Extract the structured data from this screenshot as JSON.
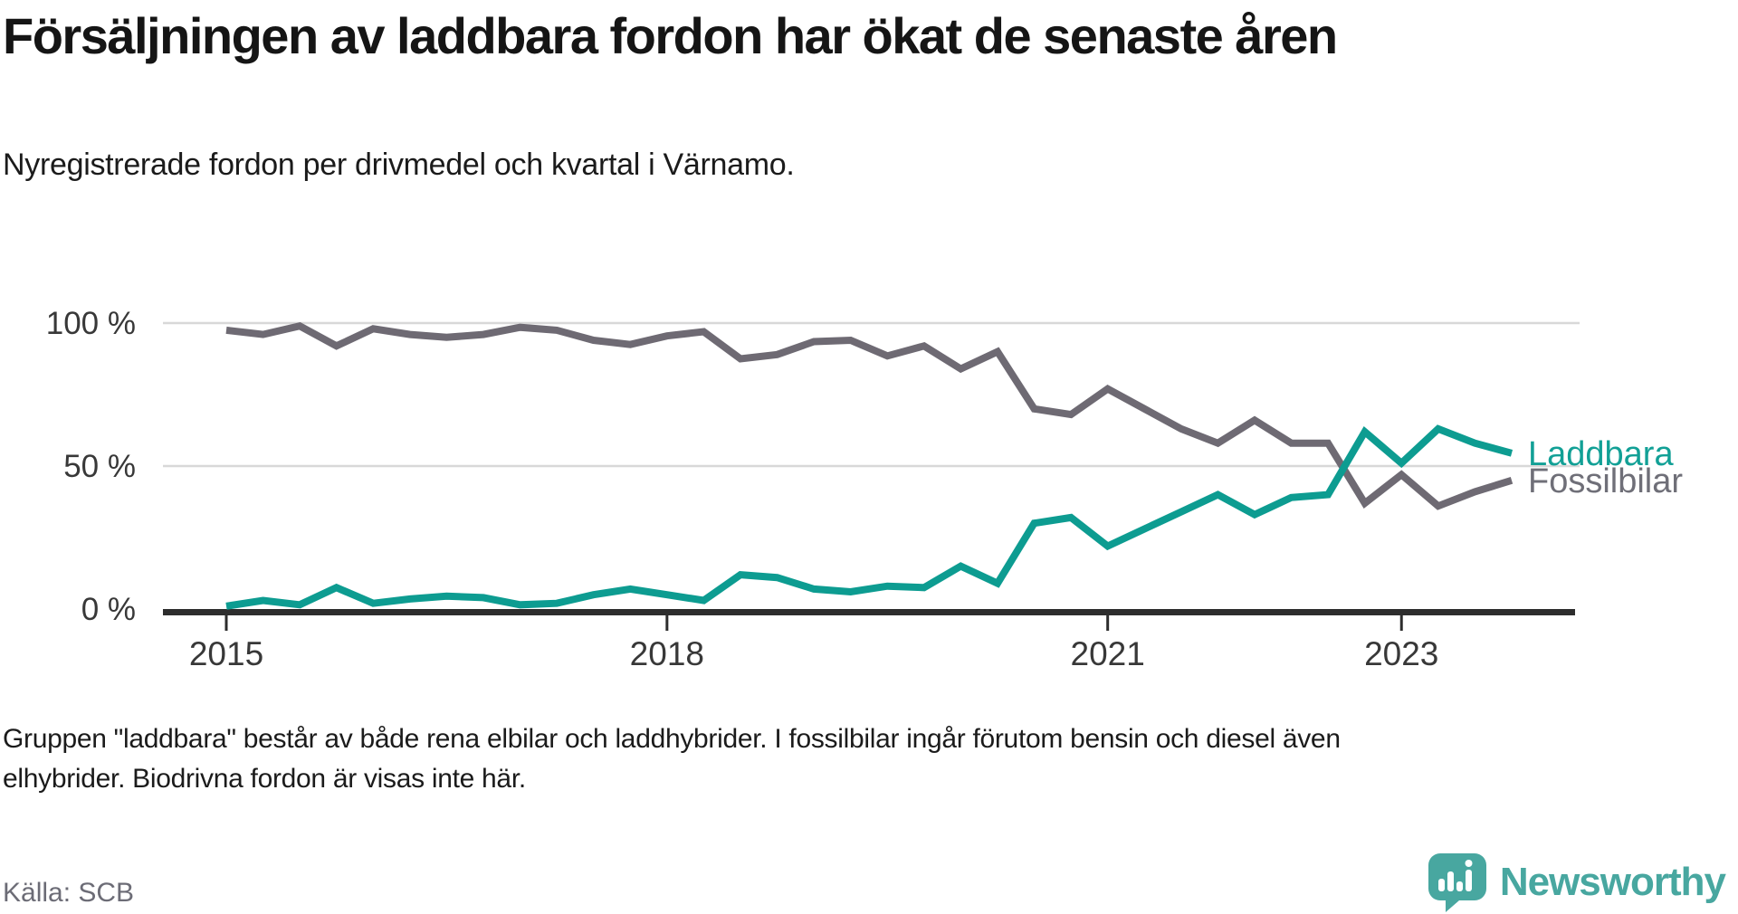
{
  "header": {
    "title": "Försäljningen av laddbara fordon har ökat de senaste åren",
    "subtitle": "Nyregistrerade fordon per drivmedel och kvartal i Värnamo."
  },
  "footnote": "Gruppen \"laddbara\" består av både rena elbilar och laddhybrider. I fossilbilar ingår förutom bensin och diesel även elhybrider. Biodrivna fordon är visas inte här.",
  "source": "Källa: SCB",
  "branding": {
    "logo_text": "Newsworthy",
    "logo_icon": "newsworthy-speech-bubble-bars-icon",
    "logo_color": "#48a7a0"
  },
  "chart_data": {
    "type": "line",
    "title": "Försäljningen av laddbara fordon har ökat de senaste åren",
    "subtitle": "Nyregistrerade fordon per drivmedel och kvartal i Värnamo.",
    "unit": "percent",
    "ylim": [
      0,
      100
    ],
    "grid": "horizontal",
    "legend_position": "end-of-line",
    "x": [
      "2015 Q1",
      "2015 Q2",
      "2015 Q3",
      "2015 Q4",
      "2016 Q1",
      "2016 Q2",
      "2016 Q3",
      "2016 Q4",
      "2017 Q1",
      "2017 Q2",
      "2017 Q3",
      "2017 Q4",
      "2018 Q1",
      "2018 Q2",
      "2018 Q3",
      "2018 Q4",
      "2019 Q1",
      "2019 Q2",
      "2019 Q3",
      "2019 Q4",
      "2020 Q1",
      "2020 Q2",
      "2020 Q3",
      "2020 Q4",
      "2021 Q1",
      "2021 Q2",
      "2021 Q3",
      "2021 Q4",
      "2022 Q1",
      "2022 Q2",
      "2022 Q3",
      "2022 Q4",
      "2023 Q1",
      "2023 Q2",
      "2023 Q3",
      "2023 Q4"
    ],
    "series": [
      {
        "name": "Fossilbilar",
        "color": "#6e6a73",
        "label_color": "#6f6f78",
        "values": [
          97.5,
          96,
          99,
          92,
          98,
          96,
          95,
          96,
          98.5,
          97.5,
          94,
          92.5,
          95.5,
          97,
          87.5,
          89,
          93.5,
          94,
          88.5,
          92,
          84,
          90,
          70,
          68,
          77,
          70,
          63,
          58,
          66,
          58,
          58,
          37,
          47,
          36,
          41,
          45
        ]
      },
      {
        "name": "Laddbara",
        "color": "#0d9c91",
        "label_color": "#12a096",
        "values": [
          1,
          3,
          1.5,
          7.5,
          2,
          3.5,
          4.5,
          4,
          1.5,
          2,
          5,
          7,
          5,
          3,
          12,
          11,
          7,
          6,
          8,
          7.5,
          15,
          9,
          30,
          32,
          22,
          28,
          34,
          40,
          33,
          39,
          40,
          62,
          51,
          63,
          58,
          54.5
        ]
      }
    ],
    "y_ticks": [
      {
        "label": "100 %",
        "value": 100
      },
      {
        "label": "50 %",
        "value": 50
      },
      {
        "label": "0 %",
        "value": 0
      }
    ],
    "x_ticks": [
      {
        "label": "2015",
        "index": 0
      },
      {
        "label": "2018",
        "index": 12
      },
      {
        "label": "2021",
        "index": 24
      },
      {
        "label": "2023",
        "index": 32
      }
    ]
  }
}
